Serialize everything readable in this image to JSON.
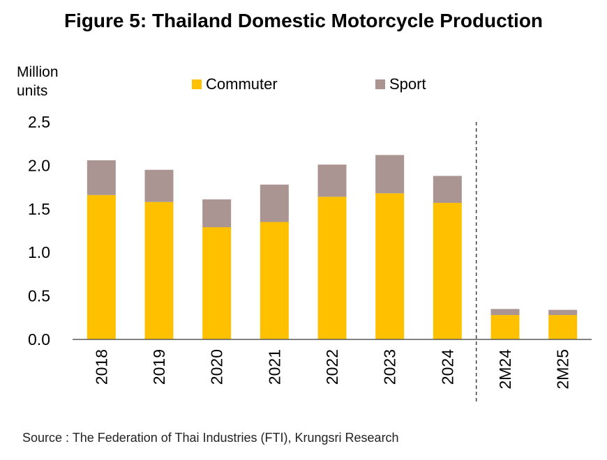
{
  "title": "Figure 5: Thailand Domestic Motorcycle Production",
  "source": "Source : The Federation of Thai Industries (FTI), Krungsri Research",
  "chart_data": {
    "type": "bar",
    "stacked": true,
    "ylabel": "Million units",
    "ylim": [
      0,
      2.5
    ],
    "yticks": [
      "0.0",
      "0.5",
      "1.0",
      "1.5",
      "2.0",
      "2.5"
    ],
    "categories": [
      "2018",
      "2019",
      "2020",
      "2021",
      "2022",
      "2023",
      "2024",
      "2M24",
      "2M25"
    ],
    "divider_after_index": 6,
    "legend_position": "top",
    "series": [
      {
        "name": "Commuter",
        "color": "#FFC000",
        "values": [
          1.66,
          1.58,
          1.29,
          1.35,
          1.64,
          1.68,
          1.57,
          0.28,
          0.28
        ]
      },
      {
        "name": "Sport",
        "color": "#AB9592",
        "values": [
          0.4,
          0.37,
          0.32,
          0.43,
          0.37,
          0.44,
          0.31,
          0.07,
          0.06
        ]
      }
    ]
  }
}
